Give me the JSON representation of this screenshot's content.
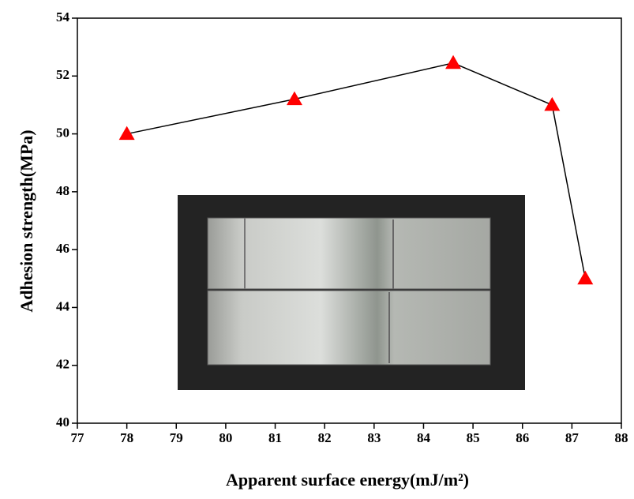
{
  "chart_data": {
    "type": "line",
    "xlabel": "Apparent surface energy(mJ/m²)",
    "ylabel": "Adhesion strength(MPa)",
    "x": [
      78.0,
      81.39,
      84.6,
      86.6,
      87.27
    ],
    "series": [
      {
        "color": "#ff0000",
        "line_color": "#000000",
        "marker": "triangle",
        "values": [
          50.0,
          51.2,
          52.45,
          51.0,
          45.0
        ]
      }
    ],
    "xlim": [
      77,
      88
    ],
    "xticks": [
      77,
      78,
      79,
      80,
      81,
      82,
      83,
      84,
      85,
      86,
      87,
      88
    ],
    "ylim": [
      40,
      54
    ],
    "yticks": [
      40,
      42,
      44,
      46,
      48,
      50,
      52,
      54
    ],
    "grid": false
  }
}
